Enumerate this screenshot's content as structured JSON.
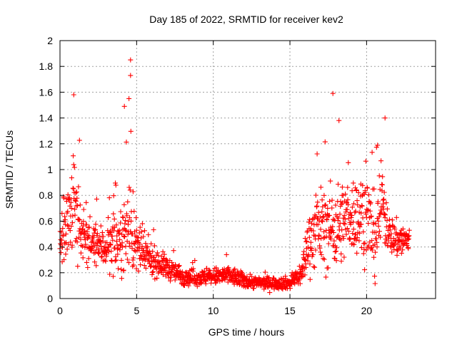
{
  "chart_data": {
    "type": "scatter",
    "title": "Day 185 of 2022, SRMTID for receiver kev2",
    "xlabel": "GPS time / hours",
    "ylabel": "SRMTID / TECUs",
    "xlim": [
      0,
      24.5
    ],
    "ylim": [
      0,
      2
    ],
    "x_ticks": [
      0,
      5,
      10,
      15,
      20
    ],
    "x_tick_labels": [
      "0",
      "5",
      "10",
      "15",
      "20"
    ],
    "y_ticks": [
      0,
      0.2,
      0.4,
      0.6,
      0.8,
      1,
      1.2,
      1.4,
      1.6,
      1.8,
      2
    ],
    "y_tick_labels": [
      "0",
      "0.2",
      "0.4",
      "0.6",
      "0.8",
      "1",
      "1.2",
      "1.4",
      "1.6",
      "1.8",
      "2"
    ],
    "grid": true,
    "marker": "+",
    "color": "#ff0000",
    "notable_points": [
      {
        "x": 4.6,
        "y": 1.85
      },
      {
        "x": 4.6,
        "y": 1.73
      },
      {
        "x": 0.9,
        "y": 1.58
      },
      {
        "x": 17.8,
        "y": 1.59
      },
      {
        "x": 4.2,
        "y": 1.49
      },
      {
        "x": 4.5,
        "y": 1.55
      },
      {
        "x": 21.2,
        "y": 1.4
      },
      {
        "x": 18.2,
        "y": 1.38
      }
    ],
    "envelope": [
      {
        "x": 0.0,
        "center": 0.4,
        "spread": 0.22
      },
      {
        "x": 0.5,
        "center": 0.62,
        "spread": 0.32
      },
      {
        "x": 1.0,
        "center": 0.7,
        "spread": 0.38
      },
      {
        "x": 1.5,
        "center": 0.5,
        "spread": 0.22
      },
      {
        "x": 2.0,
        "center": 0.42,
        "spread": 0.16
      },
      {
        "x": 3.0,
        "center": 0.4,
        "spread": 0.18
      },
      {
        "x": 4.0,
        "center": 0.45,
        "spread": 0.25
      },
      {
        "x": 4.6,
        "center": 0.6,
        "spread": 0.4
      },
      {
        "x": 5.0,
        "center": 0.38,
        "spread": 0.22
      },
      {
        "x": 6.0,
        "center": 0.3,
        "spread": 0.12
      },
      {
        "x": 7.0,
        "center": 0.24,
        "spread": 0.09
      },
      {
        "x": 8.0,
        "center": 0.17,
        "spread": 0.07
      },
      {
        "x": 9.0,
        "center": 0.16,
        "spread": 0.06
      },
      {
        "x": 10.0,
        "center": 0.17,
        "spread": 0.07
      },
      {
        "x": 11.0,
        "center": 0.18,
        "spread": 0.08
      },
      {
        "x": 12.0,
        "center": 0.14,
        "spread": 0.06
      },
      {
        "x": 13.0,
        "center": 0.12,
        "spread": 0.05
      },
      {
        "x": 14.0,
        "center": 0.12,
        "spread": 0.05
      },
      {
        "x": 15.0,
        "center": 0.12,
        "spread": 0.05
      },
      {
        "x": 15.8,
        "center": 0.2,
        "spread": 0.1
      },
      {
        "x": 16.2,
        "center": 0.45,
        "spread": 0.25
      },
      {
        "x": 17.0,
        "center": 0.55,
        "spread": 0.32
      },
      {
        "x": 18.0,
        "center": 0.55,
        "spread": 0.35
      },
      {
        "x": 19.0,
        "center": 0.65,
        "spread": 0.3
      },
      {
        "x": 20.0,
        "center": 0.65,
        "spread": 0.35
      },
      {
        "x": 20.5,
        "center": 0.45,
        "spread": 0.35
      },
      {
        "x": 21.0,
        "center": 0.75,
        "spread": 0.35
      },
      {
        "x": 21.5,
        "center": 0.5,
        "spread": 0.15
      },
      {
        "x": 22.0,
        "center": 0.45,
        "spread": 0.15
      },
      {
        "x": 22.8,
        "center": 0.45,
        "spread": 0.12
      }
    ],
    "x_max_data": 22.8,
    "approx_point_count": 1400
  }
}
